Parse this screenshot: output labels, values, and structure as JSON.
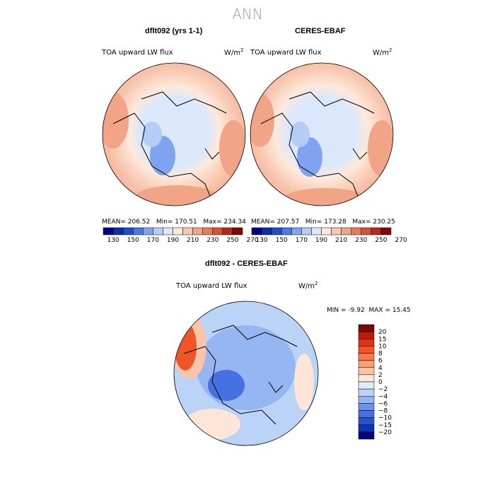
{
  "season": "ANN",
  "panels": [
    {
      "title": "dflt092 (yrs 1-1)",
      "variable": "TOA upward LW flux",
      "units": "W/m",
      "units_exp": "2",
      "mean_label": "MEAN=",
      "mean": "206.52",
      "min_label": "Min=",
      "min": "170.51",
      "max_label": "Max=",
      "max": "234.34"
    },
    {
      "title": "CERES-EBAF",
      "variable": "TOA upward LW flux",
      "units": "W/m",
      "units_exp": "2",
      "mean_label": "MEAN=",
      "mean": "207.57",
      "min_label": "Min=",
      "min": "173.28",
      "max_label": "Max=",
      "max": "230.25"
    }
  ],
  "diff_panel": {
    "title": "dflt092 - CERES-EBAF",
    "variable": "TOA upward LW flux",
    "units": "W/m",
    "units_exp": "2",
    "min_label": "MIN =",
    "min": "-9.92",
    "max_label": "MAX =",
    "max": "15.45"
  },
  "chart_data": [
    {
      "type": "heatmap",
      "projection": "north polar stereographic",
      "title": "dflt092 (yrs 1-1)",
      "variable": "TOA upward LW flux",
      "units": "W/m2",
      "mean": 206.52,
      "min": 170.51,
      "max": 234.34,
      "colorbar": {
        "tick_labels": [
          "130",
          "150",
          "170",
          "190",
          "210",
          "230",
          "250",
          "270"
        ],
        "colors": [
          "#000080",
          "#0c2fa8",
          "#1f4fd0",
          "#4a78e8",
          "#7fa3f0",
          "#b3cdf7",
          "#dbe8fb",
          "#fde9dc",
          "#f8c7b0",
          "#f2a486",
          "#e97b5b",
          "#d8503a",
          "#b52a1c",
          "#7e0a08"
        ]
      }
    },
    {
      "type": "heatmap",
      "projection": "north polar stereographic",
      "title": "CERES-EBAF",
      "variable": "TOA upward LW flux",
      "units": "W/m2",
      "mean": 207.57,
      "min": 173.28,
      "max": 230.25,
      "colorbar": {
        "tick_labels": [
          "130",
          "150",
          "170",
          "190",
          "210",
          "230",
          "250",
          "270"
        ],
        "colors": [
          "#000080",
          "#0c2fa8",
          "#1f4fd0",
          "#4a78e8",
          "#7fa3f0",
          "#b3cdf7",
          "#dbe8fb",
          "#fde9dc",
          "#f8c7b0",
          "#f2a486",
          "#e97b5b",
          "#d8503a",
          "#b52a1c",
          "#7e0a08"
        ]
      }
    },
    {
      "type": "heatmap",
      "projection": "north polar stereographic",
      "title": "dflt092 - CERES-EBAF",
      "variable": "TOA upward LW flux",
      "units": "W/m2",
      "min": -9.92,
      "max": 15.45,
      "colorbar": {
        "tick_labels": [
          "20",
          "15",
          "10",
          "8",
          "6",
          "4",
          "2",
          "0",
          "−2",
          "−4",
          "−6",
          "−8",
          "−10",
          "−15",
          "−20"
        ],
        "colors": [
          "#7e0a08",
          "#b51d0e",
          "#d9351a",
          "#ee5628",
          "#f47b4b",
          "#f7a07a",
          "#f9c4a8",
          "#fde6d8",
          "#dfeafb",
          "#bcd3f8",
          "#95b5f3",
          "#6c93ec",
          "#4671e3",
          "#2453d6",
          "#0c34b8",
          "#000880"
        ]
      }
    }
  ]
}
